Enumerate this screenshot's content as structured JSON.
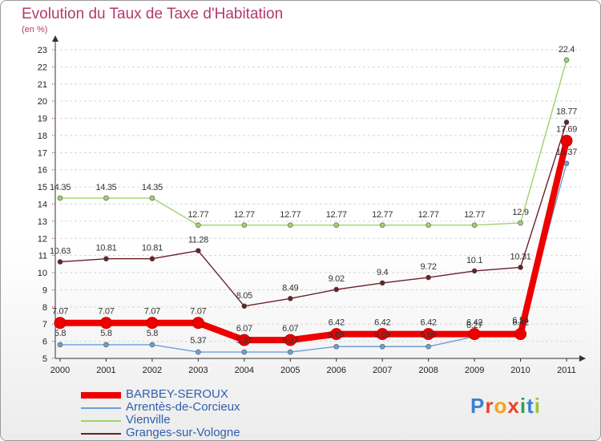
{
  "header": {
    "title": "Evolution du Taux de Taxe d'Habitation",
    "unit": "(en %)"
  },
  "logo": {
    "text": "Proxiti",
    "letter_colors": [
      "#3c7fd6",
      "#e8432c",
      "#f2a41b",
      "#e8432c",
      "#2aa34a",
      "#3c7fd6",
      "#9bc43b"
    ]
  },
  "chart_data": {
    "type": "line",
    "title": "Evolution du Taux de Taxe d'Habitation",
    "subtitle": "(en %)",
    "xlabel": "",
    "ylabel": "",
    "x": [
      "2000",
      "2001",
      "2002",
      "2003",
      "2004",
      "2005",
      "2006",
      "2007",
      "2008",
      "2009",
      "2010",
      "2011"
    ],
    "ylim": [
      5,
      23
    ],
    "yticks": [
      5,
      6,
      7,
      8,
      9,
      10,
      11,
      12,
      13,
      14,
      15,
      16,
      17,
      18,
      19,
      20,
      21,
      22,
      23
    ],
    "grid": "horizontal dashed",
    "legend_position": "bottom-left",
    "series": [
      {
        "name": "BARBEY-SEROUX",
        "color": "#ee0000",
        "values": [
          7.07,
          7.07,
          7.07,
          7.07,
          6.07,
          6.07,
          6.42,
          6.42,
          6.42,
          6.42,
          6.42,
          17.69
        ],
        "labels": [
          "7.07",
          "7.07",
          "7.07",
          "7.07",
          "6.07",
          "6.07",
          "6.42",
          "6.42",
          "6.42",
          "6.42",
          "6.42",
          "17.69"
        ]
      },
      {
        "name": "Arrentès-de-Corcieux",
        "color": "#6b9fd6",
        "values": [
          5.8,
          5.8,
          5.8,
          5.37,
          5.37,
          5.37,
          5.69,
          5.69,
          5.69,
          6.27,
          6.54,
          16.37
        ],
        "labels": [
          "5.8",
          "5.8",
          "5.8",
          "5.37",
          "5.37",
          "5.37",
          "5.69",
          "5.69",
          "5.69",
          "6.27",
          "6.54",
          "16.37"
        ]
      },
      {
        "name": "Vienville",
        "color": "#9ed26a",
        "values": [
          14.35,
          14.35,
          14.35,
          12.77,
          12.77,
          12.77,
          12.77,
          12.77,
          12.77,
          12.77,
          12.9,
          22.4
        ],
        "labels": [
          "14.35",
          "14.35",
          "14.35",
          "12.77",
          "12.77",
          "12.77",
          "12.77",
          "12.77",
          "12.77",
          "12.77",
          "12.9",
          "22.4"
        ]
      },
      {
        "name": "Granges-sur-Vologne",
        "color": "#6b1f28",
        "values": [
          10.63,
          10.81,
          10.81,
          11.28,
          8.05,
          8.49,
          9.02,
          9.4,
          9.72,
          10.1,
          10.31,
          18.77
        ],
        "labels": [
          "10.63",
          "10.81",
          "10.81",
          "11.28",
          "8.05",
          "8.49",
          "9.02",
          "9.4",
          "9.72",
          "10.1",
          "10.31",
          "18.77"
        ]
      }
    ]
  }
}
